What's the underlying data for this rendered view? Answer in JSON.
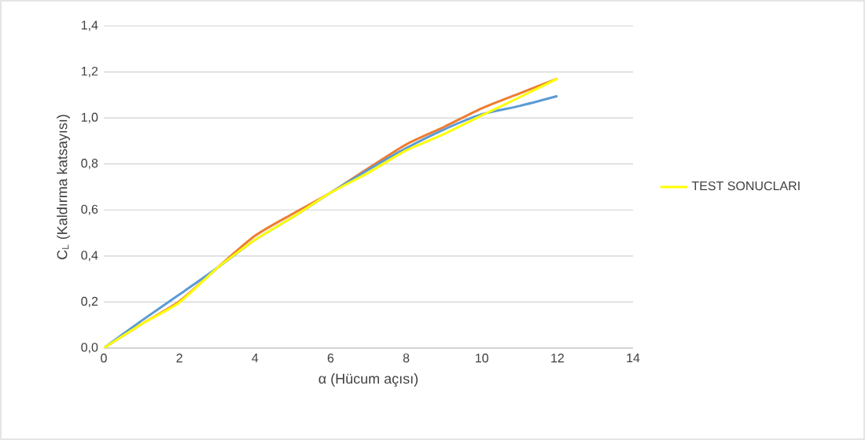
{
  "chart_data": {
    "type": "line",
    "xlabel": "α (Hücum açısı)",
    "ylabel": "C$_{L}$ (Kaldırma katsayısı)",
    "x": [
      0,
      1,
      2,
      3,
      4,
      5,
      6,
      7,
      8,
      9,
      10,
      11,
      12
    ],
    "series": [
      {
        "color": "#ed7d31",
        "values": [
          0,
          0.104,
          0.203,
          0.348,
          0.488,
          0.584,
          0.675,
          0.782,
          0.885,
          0.961,
          1.042,
          1.107,
          1.171
        ]
      },
      {
        "color": "#5b9bd5",
        "values": [
          0,
          0.119,
          0.233,
          0.348,
          0.47,
          0.569,
          0.675,
          0.775,
          0.869,
          0.95,
          1.016,
          1.052,
          1.095
        ]
      },
      {
        "name": "TEST SONUCLARI",
        "color": "#ffff00",
        "values": [
          0,
          0.104,
          0.198,
          0.348,
          0.47,
          0.569,
          0.675,
          0.762,
          0.859,
          0.93,
          1.011,
          1.09,
          1.171
        ]
      }
    ],
    "xlim": [
      0,
      14
    ],
    "xticks": [
      0,
      2,
      4,
      6,
      8,
      10,
      12,
      14
    ],
    "ylim": [
      0,
      1.4
    ],
    "yticks": [
      {
        "value": 0,
        "label": "0,0"
      },
      {
        "value": 0.2,
        "label": "0,2"
      },
      {
        "value": 0.4,
        "label": "0,4"
      },
      {
        "value": 0.6,
        "label": "0,6"
      },
      {
        "value": 0.8,
        "label": "0,8"
      },
      {
        "value": 1.0,
        "label": "1,0"
      },
      {
        "value": 1.2,
        "label": "1,2"
      },
      {
        "value": 1.4,
        "label": "1,4"
      }
    ],
    "grid": "y",
    "legend": "right",
    "marker": "none",
    "line_style": "solid"
  }
}
